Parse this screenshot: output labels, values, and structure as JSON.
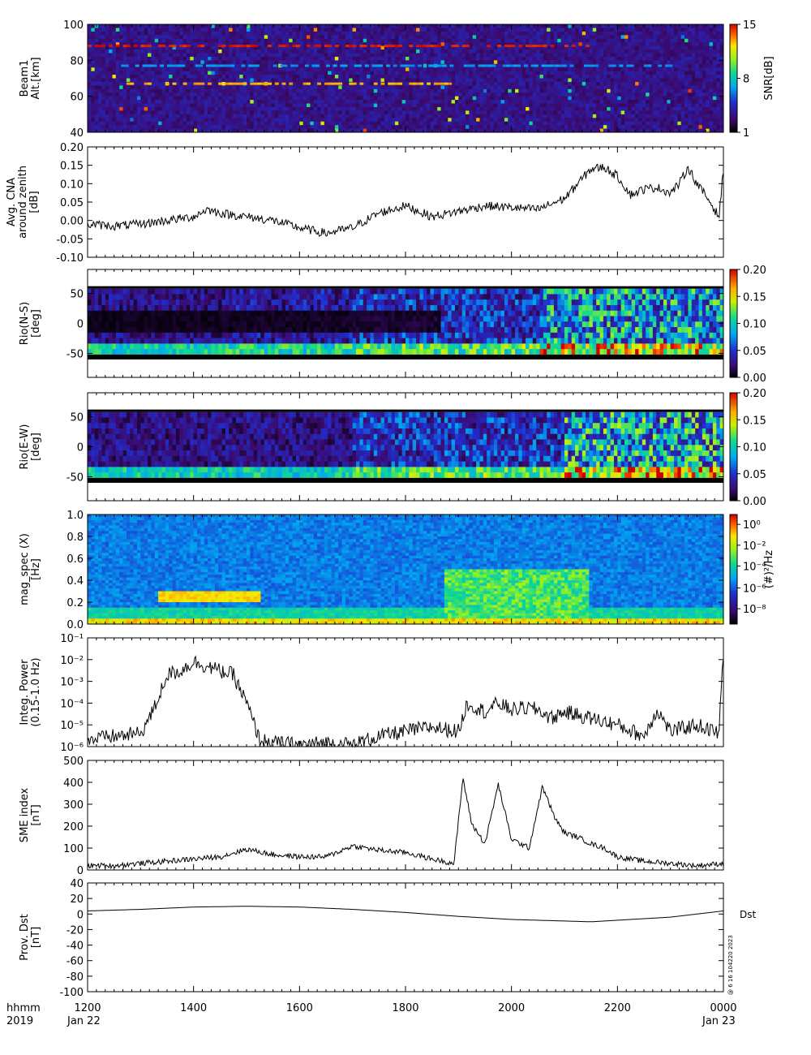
{
  "chart_data": [
    {
      "type": "heatmap",
      "ylabel_lines": [
        "Beam1",
        "Alt.[km]"
      ],
      "ylim": [
        40,
        100
      ],
      "yticks": [
        40,
        60,
        80,
        100
      ],
      "colorbar": {
        "label": "SNR[dB]",
        "ticks": [
          "1",
          "8",
          "15"
        ],
        "range": [
          1,
          15
        ]
      },
      "features": [
        {
          "alt": 88,
          "start": "12:00",
          "end": "21:25",
          "snr": 15
        },
        {
          "alt": 77,
          "start": "12:30",
          "end": "23:00",
          "snr": 6
        },
        {
          "alt": 67,
          "start": "12:40",
          "end": "18:55",
          "snr": 13
        }
      ]
    },
    {
      "type": "line",
      "ylabel_lines": [
        "Avg. CNA",
        "around zenith",
        "[dB]"
      ],
      "ylim": [
        -0.1,
        0.2
      ],
      "yticks": [
        "-0.10",
        "-0.05",
        "0.00",
        "0.05",
        "0.10",
        "0.15",
        "0.20"
      ],
      "x": [
        "12:00",
        "12:30",
        "13:00",
        "13:30",
        "14:00",
        "14:15",
        "14:30",
        "15:00",
        "15:30",
        "16:00",
        "16:30",
        "17:00",
        "17:30",
        "18:00",
        "18:30",
        "19:00",
        "19:30",
        "20:00",
        "20:30",
        "21:00",
        "21:15",
        "21:30",
        "21:45",
        "22:00",
        "22:15",
        "22:30",
        "22:45",
        "23:00",
        "23:10",
        "23:20",
        "23:30",
        "23:45",
        "23:55",
        "00:00"
      ],
      "y": [
        -0.01,
        -0.015,
        -0.01,
        0.0,
        0.01,
        0.03,
        0.02,
        0.01,
        0.0,
        -0.02,
        -0.035,
        -0.02,
        0.02,
        0.04,
        0.01,
        0.025,
        0.04,
        0.035,
        0.03,
        0.06,
        0.1,
        0.14,
        0.145,
        0.12,
        0.07,
        0.085,
        0.09,
        0.075,
        0.1,
        0.145,
        0.1,
        0.05,
        0.01,
        0.14
      ]
    },
    {
      "type": "heatmap",
      "ylabel_lines": [
        "Rio(N-S)",
        "[deg]"
      ],
      "ylim": [
        -90,
        90
      ],
      "yticks": [
        -50,
        0,
        50
      ],
      "colorbar": {
        "ticks": [
          "0.00",
          "0.05",
          "0.10",
          "0.15",
          "0.20"
        ],
        "range": [
          0,
          0.2
        ]
      },
      "band_rows_deg": [
        -40,
        0,
        40
      ],
      "activity": [
        {
          "start": "12:00",
          "end": "14:30",
          "level": 0.05
        },
        {
          "start": "14:30",
          "end": "17:00",
          "level": 0.06
        },
        {
          "start": "17:00",
          "end": "20:30",
          "level": 0.08
        },
        {
          "start": "20:30",
          "end": "00:00",
          "level": 0.13
        }
      ]
    },
    {
      "type": "heatmap",
      "ylabel_lines": [
        "Rio(E-W)",
        "[deg]"
      ],
      "ylim": [
        -90,
        90
      ],
      "yticks": [
        -50,
        0,
        50
      ],
      "colorbar": {
        "ticks": [
          "0.00",
          "0.05",
          "0.10",
          "0.15",
          "0.20"
        ],
        "range": [
          0,
          0.2
        ]
      },
      "activity": [
        {
          "start": "12:00",
          "end": "17:00",
          "level": 0.05
        },
        {
          "start": "17:00",
          "end": "21:00",
          "level": 0.08
        },
        {
          "start": "21:00",
          "end": "00:00",
          "level": 0.14
        }
      ]
    },
    {
      "type": "heatmap",
      "ylabel_lines": [
        "mag_spec (X)",
        "[Hz]"
      ],
      "ylim": [
        0,
        1.0
      ],
      "yticks": [
        "0.0",
        "0.2",
        "0.4",
        "0.6",
        "0.8",
        "1.0"
      ],
      "colorbar": {
        "label": "(#)²/Hz",
        "ticks": [
          "10⁰",
          "10⁻²",
          "10⁻⁴",
          "10⁻⁶",
          "10⁻⁸"
        ],
        "log10_range": [
          -9,
          1
        ]
      },
      "features": [
        {
          "freq_band": [
            0.2,
            0.3
          ],
          "start": "13:20",
          "end": "15:15",
          "log10_power": -2.5
        }
      ]
    },
    {
      "type": "line",
      "ylabel_lines": [
        "Integ. Power",
        "(0.15-1.0 Hz)"
      ],
      "ylog": true,
      "ylim": [
        1e-06,
        0.1
      ],
      "yticks": [
        "10⁻⁶",
        "10⁻⁵",
        "10⁻⁴",
        "10⁻³",
        "10⁻²",
        "10⁻¹"
      ],
      "x": [
        "12:00",
        "12:30",
        "13:00",
        "13:15",
        "13:30",
        "13:45",
        "14:00",
        "14:15",
        "14:30",
        "14:45",
        "15:00",
        "15:15",
        "15:30",
        "16:00",
        "16:30",
        "17:00",
        "17:30",
        "18:00",
        "18:30",
        "19:00",
        "19:10",
        "19:30",
        "19:45",
        "20:00",
        "20:15",
        "20:30",
        "20:45",
        "21:00",
        "21:30",
        "22:00",
        "22:30",
        "22:45",
        "23:00",
        "23:30",
        "23:55",
        "00:00"
      ],
      "y": [
        2e-06,
        3e-06,
        4e-06,
        5e-05,
        0.002,
        0.003,
        0.008,
        0.005,
        0.003,
        0.002,
        0.0001,
        2e-06,
        1.5e-06,
        1.2e-06,
        1.5e-06,
        1.2e-06,
        3e-06,
        5e-06,
        8e-06,
        5e-06,
        0.0001,
        4e-05,
        0.0001,
        5e-05,
        6e-05,
        5e-05,
        2e-05,
        4e-05,
        2e-05,
        1e-05,
        3e-06,
        5e-05,
        5e-06,
        1e-05,
        4e-06,
        0.03
      ]
    },
    {
      "type": "line",
      "ylabel_lines": [
        "SME index",
        "[nT]"
      ],
      "ylim": [
        0,
        500
      ],
      "yticks": [
        0,
        100,
        200,
        300,
        400,
        500
      ],
      "x": [
        "12:00",
        "12:30",
        "13:00",
        "13:30",
        "14:00",
        "14:30",
        "15:00",
        "15:30",
        "16:00",
        "16:30",
        "17:00",
        "17:30",
        "18:00",
        "18:30",
        "18:55",
        "19:05",
        "19:15",
        "19:30",
        "19:45",
        "20:00",
        "20:10",
        "20:20",
        "20:35",
        "20:50",
        "21:00",
        "21:15",
        "21:30",
        "21:45",
        "22:00",
        "22:30",
        "23:00",
        "23:30",
        "00:00"
      ],
      "y": [
        20,
        20,
        30,
        40,
        50,
        60,
        95,
        70,
        60,
        60,
        110,
        90,
        80,
        50,
        30,
        420,
        210,
        120,
        390,
        140,
        120,
        100,
        380,
        230,
        170,
        150,
        120,
        100,
        60,
        40,
        30,
        20,
        30
      ]
    },
    {
      "type": "line",
      "ylabel_lines": [
        "Prov. Dst",
        "[nT]"
      ],
      "ylim": [
        -100,
        40
      ],
      "yticks": [
        -100,
        -80,
        -60,
        -40,
        -20,
        0,
        20,
        40
      ],
      "right_label": "Dst",
      "x": [
        "12:00",
        "13:00",
        "14:00",
        "15:00",
        "16:00",
        "17:00",
        "18:00",
        "19:00",
        "20:00",
        "21:00",
        "21:30",
        "22:00",
        "23:00",
        "00:00"
      ],
      "y": [
        4,
        6,
        9,
        10,
        9,
        6,
        2,
        -3,
        -7,
        -9,
        -10,
        -8,
        -4,
        4
      ]
    }
  ],
  "xaxis": {
    "tick_labels": [
      "1200",
      "1400",
      "1600",
      "1800",
      "2000",
      "2200",
      "0000"
    ],
    "tick_hours": [
      0,
      2,
      4,
      6,
      8,
      10,
      12
    ],
    "start_date": "Jan 22",
    "end_date": "Jan 23",
    "left_caption": [
      "hhmm",
      "2019"
    ]
  },
  "stamp": "@ 6 16 104220 2023"
}
